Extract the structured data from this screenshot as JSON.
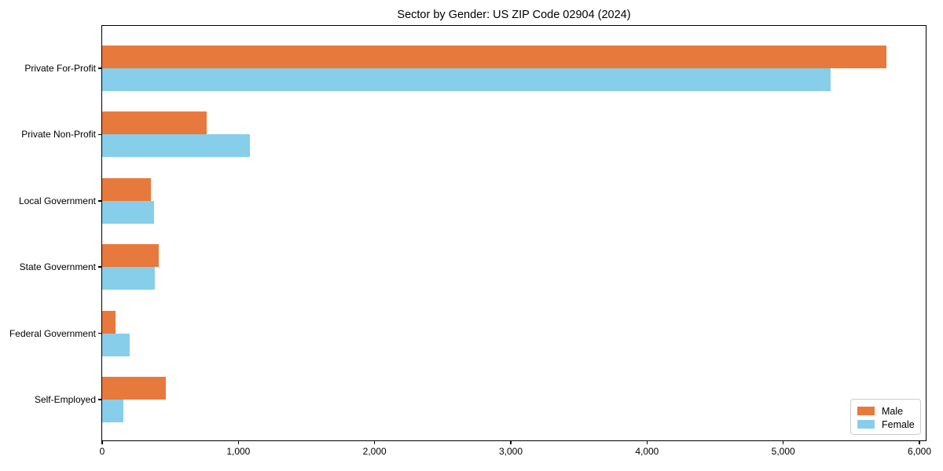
{
  "chart_data": {
    "type": "bar",
    "orientation": "horizontal",
    "title": "Sector by Gender: US ZIP Code 02904 (2024)",
    "categories": [
      "Private For-Profit",
      "Private Non-Profit",
      "Local Government",
      "State Government",
      "Federal Government",
      "Self-Employed"
    ],
    "series": [
      {
        "name": "Male",
        "color": "#E8793D",
        "values": [
          5760,
          765,
          360,
          415,
          100,
          470
        ]
      },
      {
        "name": "Female",
        "color": "#87CEEB",
        "values": [
          5350,
          1085,
          380,
          385,
          200,
          155
        ]
      }
    ],
    "xlabel": "",
    "ylabel": "",
    "xlim": [
      0,
      6000
    ],
    "xticks": [
      0,
      1000,
      2000,
      3000,
      4000,
      5000,
      6000
    ],
    "xtick_labels": [
      "0",
      "1,000",
      "2,000",
      "3,000",
      "4,000",
      "5,000",
      "6,000"
    ],
    "grid": false,
    "legend": {
      "position": "lower right",
      "entries": [
        "Male",
        "Female"
      ]
    },
    "colors": {
      "axis": "#000000",
      "legend_border": "#cccccc",
      "background": "#ffffff"
    }
  }
}
